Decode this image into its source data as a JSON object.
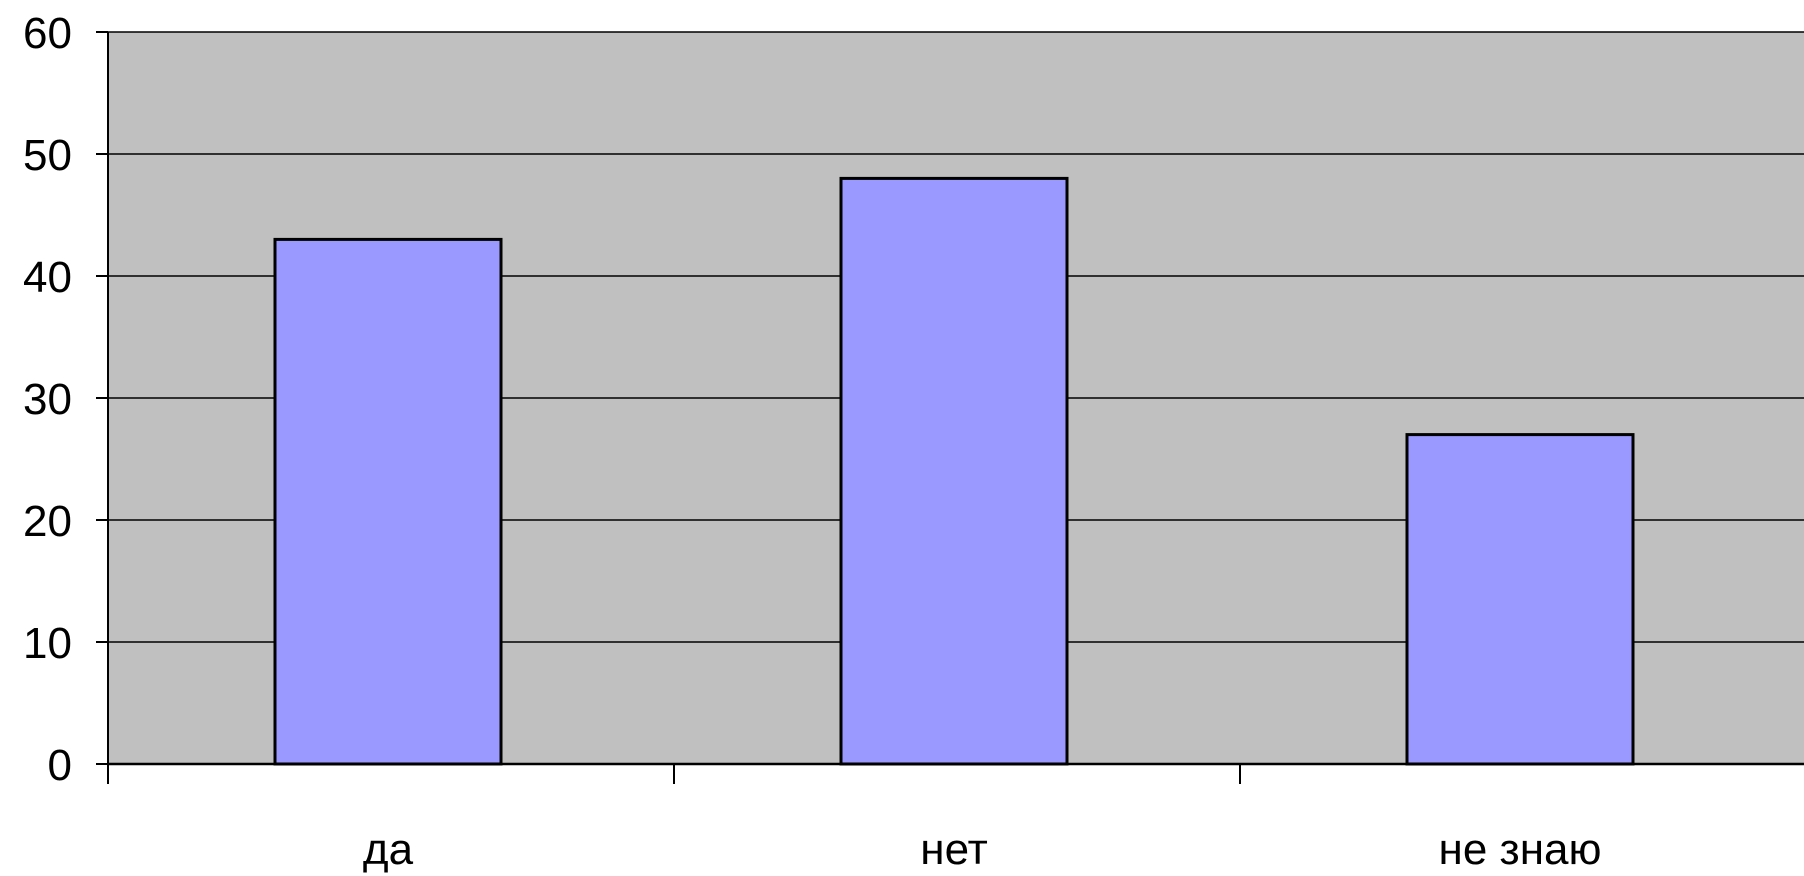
{
  "colors": {
    "plot_background": "#c0c0c0",
    "bar_fill": "#9999ff",
    "bar_stroke": "#000000",
    "gridline": "#000000",
    "axis": "#000000",
    "page_background": "#ffffff"
  },
  "chart_data": {
    "type": "bar",
    "categories": [
      "да",
      "нет",
      "не знаю"
    ],
    "values": [
      43,
      48,
      27
    ],
    "ylim": [
      0,
      60
    ],
    "yticks": [
      "0",
      "10",
      "20",
      "30",
      "40",
      "50",
      "60"
    ],
    "grid": true,
    "legend": "none"
  }
}
